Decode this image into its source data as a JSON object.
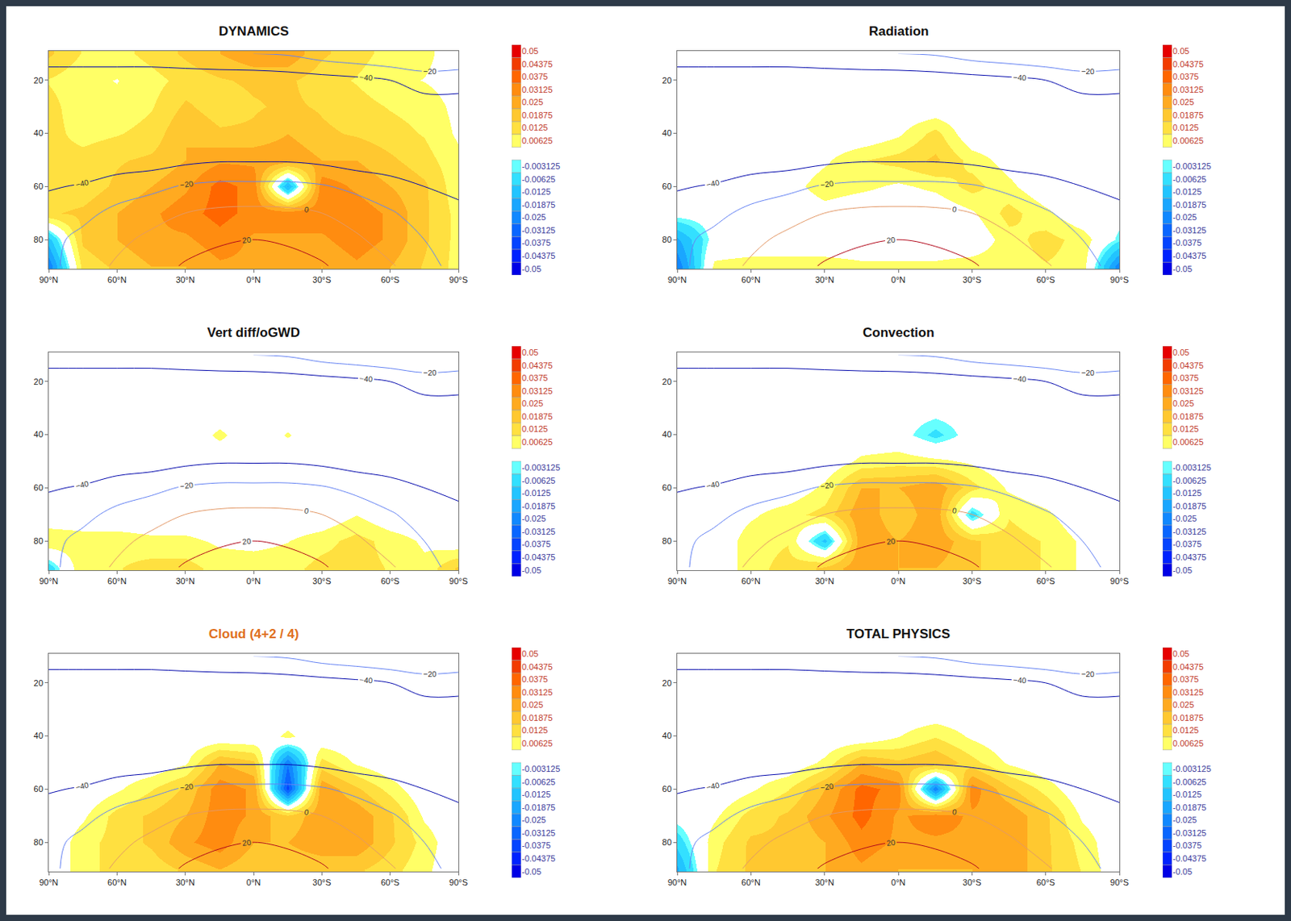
{
  "chart_data": {
    "type": "heatmap",
    "x": [
      90,
      75,
      60,
      45,
      30,
      15,
      0,
      -15,
      -30,
      -45,
      -60,
      -75,
      -90
    ],
    "y": [
      10,
      20,
      30,
      40,
      50,
      60,
      70,
      80,
      90
    ],
    "xlim": [
      90,
      -90
    ],
    "ylim": [
      91,
      9
    ],
    "xticks": [
      {
        "value": 90,
        "label": "90°N"
      },
      {
        "value": 60,
        "label": "60°N"
      },
      {
        "value": 30,
        "label": "30°N"
      },
      {
        "value": 0,
        "label": "0°N"
      },
      {
        "value": -30,
        "label": "30°S"
      },
      {
        "value": -60,
        "label": "60°S"
      },
      {
        "value": -90,
        "label": "90°S"
      }
    ],
    "yticks": [
      20,
      40,
      60,
      80
    ],
    "colorbar": {
      "levels": [
        0.05,
        0.04375,
        0.0375,
        0.03125,
        0.025,
        0.01875,
        0.0125,
        0.00625,
        -0.003125,
        -0.00625,
        -0.0125,
        -0.01875,
        -0.025,
        -0.03125,
        -0.0375,
        -0.04375,
        -0.05
      ],
      "colors": [
        "#e60000",
        "#f23c00",
        "#ff6600",
        "#ff8c10",
        "#ffaa20",
        "#ffc830",
        "#ffe040",
        "#ffff66",
        "#66ffff",
        "#33e0ff",
        "#22c4ff",
        "#1aa6ff",
        "#1188ff",
        "#0a66ff",
        "#0544ff",
        "#0022ff",
        "#0000e6"
      ]
    },
    "contours": {
      "levels": [
        -40,
        -20,
        0,
        20
      ],
      "values": [
        [
          -30,
          -30,
          -30,
          -28,
          -25,
          -22,
          -20,
          -18,
          -10,
          -5,
          0,
          0,
          -5
        ],
        [
          -50,
          -50,
          -50,
          -52,
          -52,
          -52,
          -52,
          -50,
          -48,
          -45,
          -40,
          -30,
          -30
        ],
        [
          -55,
          -55,
          -55,
          -55,
          -55,
          -55,
          -55,
          -55,
          -55,
          -55,
          -52,
          -50,
          -50
        ],
        [
          -55,
          -55,
          -55,
          -57,
          -60,
          -60,
          -60,
          -60,
          -60,
          -57,
          -55,
          -55,
          -55
        ],
        [
          -55,
          -55,
          -52,
          -50,
          -45,
          -42,
          -42,
          -42,
          -45,
          -50,
          -52,
          -55,
          -55
        ],
        [
          -42,
          -38,
          -30,
          -25,
          -18,
          -15,
          -15,
          -15,
          -18,
          -25,
          -32,
          -40,
          -45
        ],
        [
          -30,
          -25,
          -15,
          -8,
          0,
          4,
          5,
          4,
          0,
          -8,
          -18,
          -28,
          -35
        ],
        [
          -25,
          -15,
          -5,
          5,
          12,
          18,
          20,
          18,
          12,
          3,
          -8,
          -20,
          -30
        ],
        [
          -25,
          -10,
          3,
          12,
          22,
          26,
          27,
          26,
          22,
          12,
          2,
          -10,
          -30
        ]
      ]
    },
    "panels": [
      {
        "title": "DYNAMICS",
        "cells": [
          [
            0.02,
            0.012,
            0.01,
            0.015,
            0.02,
            0.025,
            0.03,
            0.03,
            0.02,
            0.015,
            0.01,
            0.008,
            0.002
          ],
          [
            0.012,
            0.008,
            0.006,
            0.01,
            0.015,
            0.018,
            0.02,
            0.02,
            0.015,
            0.012,
            0.008,
            0.006,
            0.003
          ],
          [
            0.015,
            0.008,
            0.008,
            0.012,
            0.02,
            0.015,
            0.018,
            0.02,
            0.018,
            0.015,
            0.012,
            0.01,
            0.004
          ],
          [
            0.015,
            0.01,
            0.012,
            0.015,
            0.025,
            0.02,
            0.02,
            0.025,
            0.02,
            0.018,
            0.015,
            0.012,
            0.005
          ],
          [
            0.015,
            0.015,
            0.018,
            0.02,
            0.025,
            0.03,
            0.03,
            0.03,
            0.025,
            0.025,
            0.02,
            0.015,
            0.008
          ],
          [
            0.015,
            0.015,
            0.02,
            0.025,
            0.03,
            0.04,
            0.035,
            -0.02,
            0.035,
            0.03,
            0.025,
            0.02,
            0.008
          ],
          [
            0.018,
            0.02,
            0.025,
            0.03,
            0.035,
            0.04,
            0.035,
            0.035,
            0.035,
            0.035,
            0.03,
            0.02,
            0.01
          ],
          [
            -0.015,
            0.02,
            0.025,
            0.03,
            0.03,
            0.035,
            0.03,
            0.03,
            0.03,
            0.035,
            0.03,
            0.02,
            0.01
          ],
          [
            -0.03,
            0.015,
            0.02,
            0.025,
            0.025,
            0.03,
            0.03,
            0.03,
            0.025,
            0.03,
            0.025,
            0.018,
            0.01
          ]
        ]
      },
      {
        "title": "Radiation",
        "cells": [
          [
            0,
            0,
            0,
            0,
            0,
            0,
            0,
            0,
            0,
            0,
            0,
            0,
            0
          ],
          [
            0,
            0,
            0,
            0,
            0,
            0,
            0,
            0,
            0,
            0,
            0,
            0,
            0
          ],
          [
            0,
            0,
            0,
            0,
            0,
            0,
            0,
            0,
            0,
            0,
            0,
            0,
            0
          ],
          [
            0,
            0,
            0,
            0,
            0,
            0,
            0.005,
            0.015,
            0,
            0,
            0,
            0,
            0
          ],
          [
            0,
            0,
            0,
            0,
            0.005,
            0.012,
            0.015,
            0.02,
            0.01,
            0.003,
            0,
            0,
            0
          ],
          [
            0,
            0,
            0,
            0.003,
            0.01,
            0.008,
            0.005,
            0.008,
            0.015,
            0.008,
            0,
            0,
            0
          ],
          [
            0,
            0,
            0,
            0,
            0.003,
            0,
            0,
            0,
            0.005,
            0.015,
            0.008,
            0,
            0
          ],
          [
            -0.02,
            0,
            0,
            0,
            0,
            0,
            0,
            0,
            0,
            0.01,
            0.015,
            0.01,
            -0.005
          ],
          [
            -0.03,
            0.008,
            0.01,
            0.01,
            0.01,
            0.008,
            0.008,
            0.008,
            0.01,
            0.01,
            0.012,
            0.01,
            -0.03
          ]
        ]
      },
      {
        "title": "Vert diff/oGWD",
        "cells": [
          [
            0,
            0,
            0,
            0,
            0,
            0,
            0,
            0,
            0,
            0,
            0,
            0,
            0
          ],
          [
            0,
            0,
            0,
            0,
            0,
            0,
            0,
            0,
            0,
            0,
            0,
            0,
            0
          ],
          [
            0,
            0,
            0,
            0,
            0,
            0,
            0,
            0,
            0,
            0,
            0,
            0,
            0
          ],
          [
            0,
            0,
            0,
            0,
            0,
            0.008,
            0,
            0.007,
            0,
            0,
            0,
            0,
            0
          ],
          [
            0,
            0,
            0,
            0,
            0,
            0,
            0,
            0,
            0,
            0,
            0,
            0,
            0
          ],
          [
            0,
            0,
            0,
            0,
            0,
            0,
            0,
            0,
            0,
            0,
            0,
            0,
            0
          ],
          [
            0,
            0,
            0,
            0,
            0,
            0,
            0,
            0,
            0,
            0.006,
            0,
            0,
            0
          ],
          [
            0.012,
            0.01,
            0.01,
            0.008,
            0.008,
            0.005,
            0.004,
            0.006,
            0.01,
            0.015,
            0.01,
            0.005,
            0
          ],
          [
            -0.01,
            0.012,
            0.012,
            0.015,
            0.015,
            0.01,
            0.01,
            0.01,
            0.015,
            0.015,
            0.012,
            0.008,
            0.02
          ]
        ]
      },
      {
        "title": "Convection",
        "cells": [
          [
            0,
            0,
            0,
            0,
            0,
            0,
            0,
            0,
            0,
            0,
            0,
            0,
            0
          ],
          [
            0,
            0,
            0,
            0,
            0,
            0,
            0,
            0,
            0,
            0,
            0,
            0,
            0
          ],
          [
            0,
            0,
            0,
            0,
            0,
            0,
            0,
            0,
            0,
            0,
            0,
            0,
            0
          ],
          [
            0,
            0,
            0,
            0,
            0,
            0,
            0,
            -0.008,
            0,
            0,
            0,
            0,
            0
          ],
          [
            0,
            0,
            0,
            0,
            0,
            0.008,
            0.01,
            0.008,
            0.005,
            0,
            0,
            0,
            0
          ],
          [
            0,
            0,
            0,
            0,
            0.008,
            0.025,
            0.025,
            0.03,
            0.015,
            0.005,
            0,
            0,
            0
          ],
          [
            0,
            0,
            0.005,
            0.01,
            0.015,
            0.03,
            0.02,
            0.03,
            -0.01,
            0.012,
            0.008,
            0,
            0
          ],
          [
            0,
            0,
            0.01,
            0.012,
            -0.015,
            0.03,
            0.025,
            0.03,
            0.02,
            0.015,
            0.012,
            0.005,
            0
          ],
          [
            0,
            0,
            0.01,
            0.015,
            0.02,
            0.03,
            0.025,
            0.025,
            0.02,
            0.015,
            0.012,
            0.005,
            0
          ]
        ]
      },
      {
        "title": "Cloud (4+2 / 4)",
        "color": "#e07020",
        "cells": [
          [
            0,
            0,
            0,
            0,
            0,
            0,
            0,
            0,
            0,
            0,
            0,
            0,
            0
          ],
          [
            0,
            0,
            0,
            0,
            0,
            0,
            0,
            0,
            0,
            0,
            0,
            0,
            0
          ],
          [
            0,
            0,
            0,
            0,
            0,
            0,
            0,
            0,
            0,
            0,
            0,
            0,
            0
          ],
          [
            0,
            0,
            0,
            0,
            0,
            0,
            0,
            0.008,
            0,
            0,
            0,
            0,
            0
          ],
          [
            0,
            0,
            0,
            0,
            0.005,
            0.025,
            0.02,
            -0.03,
            0.015,
            0.005,
            0,
            0,
            0
          ],
          [
            0,
            0,
            0.005,
            0.012,
            0.02,
            0.035,
            0.03,
            -0.04,
            0.03,
            0.02,
            0.01,
            0,
            0
          ],
          [
            0,
            0.005,
            0.015,
            0.02,
            0.025,
            0.035,
            0.03,
            0.02,
            0.03,
            0.03,
            0.02,
            0.005,
            0
          ],
          [
            0,
            0.01,
            0.015,
            0.02,
            0.03,
            0.035,
            0.025,
            0.025,
            0.03,
            0.03,
            0.02,
            0.01,
            0
          ],
          [
            0,
            0.01,
            0.015,
            0.015,
            0.02,
            0.025,
            0.02,
            0.02,
            0.02,
            0.02,
            0.015,
            0.008,
            0
          ]
        ]
      },
      {
        "title": "TOTAL PHYSICS",
        "cells": [
          [
            0,
            0,
            0,
            0,
            0,
            0,
            0,
            0,
            0,
            0,
            0,
            0,
            0
          ],
          [
            0,
            0,
            0,
            0,
            0,
            0,
            0,
            0,
            0,
            0,
            0,
            0,
            0
          ],
          [
            0,
            0,
            0,
            0,
            0,
            0,
            0,
            0,
            0,
            0,
            0,
            0,
            0
          ],
          [
            0,
            0,
            0,
            0,
            0,
            0,
            0.006,
            0.012,
            0.005,
            0,
            0,
            0,
            0
          ],
          [
            0,
            0,
            0,
            0,
            0.008,
            0.025,
            0.02,
            0.025,
            0.015,
            0.005,
            0,
            0,
            0
          ],
          [
            0,
            0,
            0.005,
            0.012,
            0.025,
            0.04,
            0.035,
            -0.03,
            0.035,
            0.02,
            0.01,
            0,
            0
          ],
          [
            0,
            0.005,
            0.015,
            0.02,
            0.03,
            0.04,
            0.03,
            0.035,
            0.03,
            0.03,
            0.02,
            0.005,
            0
          ],
          [
            -0.01,
            0.01,
            0.02,
            0.02,
            0.025,
            0.035,
            0.03,
            0.03,
            0.03,
            0.03,
            0.02,
            0.01,
            0
          ],
          [
            -0.02,
            0.012,
            0.02,
            0.02,
            0.025,
            0.03,
            0.025,
            0.025,
            0.025,
            0.03,
            0.02,
            0.012,
            0
          ]
        ]
      }
    ]
  }
}
